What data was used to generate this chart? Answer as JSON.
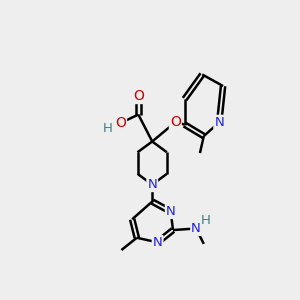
{
  "bg_color": "#eeeeee",
  "atom_colors": {
    "C": "#000000",
    "N": "#2222cc",
    "O": "#cc0000",
    "H": "#408080"
  },
  "bond_color": "#000000",
  "bond_width": 1.8,
  "figsize": [
    3.0,
    3.0
  ],
  "dpi": 100
}
